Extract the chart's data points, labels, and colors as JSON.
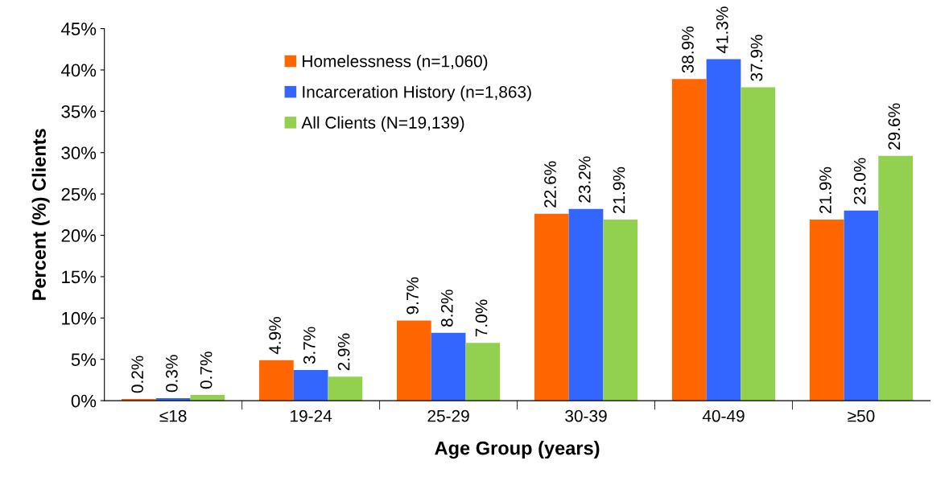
{
  "chart_data": {
    "type": "bar",
    "xlabel": "Age Group (years)",
    "ylabel": "Percent (%) Clients",
    "categories": [
      "≤18",
      "19-24",
      "25-29",
      "30-39",
      "40-49",
      "≥50"
    ],
    "series": [
      {
        "name": "Homelessness (n=1,060)",
        "color": "#ff6600",
        "values": [
          0.2,
          4.9,
          9.7,
          22.6,
          38.9,
          21.9
        ],
        "value_labels": [
          "0.2%",
          "4.9%",
          "9.7%",
          "22.6%",
          "38.9%",
          "21.9%"
        ]
      },
      {
        "name": "Incarceration History (n=1,863)",
        "color": "#3366ff",
        "values": [
          0.3,
          3.7,
          8.2,
          23.2,
          41.3,
          23.0
        ],
        "value_labels": [
          "0.3%",
          "3.7%",
          "8.2%",
          "23.2%",
          "41.3%",
          "23.0%"
        ]
      },
      {
        "name": "All Clients (N=19,139)",
        "color": "#92d050",
        "values": [
          0.7,
          2.9,
          7.0,
          21.9,
          37.9,
          29.6
        ],
        "value_labels": [
          "0.7%",
          "2.9%",
          "7.0%",
          "21.9%",
          "37.9%",
          "29.6%"
        ]
      }
    ],
    "ylim": [
      0,
      45
    ],
    "yticks": [
      {
        "value": 0,
        "label": "0%"
      },
      {
        "value": 5,
        "label": "5%"
      },
      {
        "value": 10,
        "label": "10%"
      },
      {
        "value": 15,
        "label": "15%"
      },
      {
        "value": 20,
        "label": "20%"
      },
      {
        "value": 25,
        "label": "25%"
      },
      {
        "value": 30,
        "label": "30%"
      },
      {
        "value": 35,
        "label": "35%"
      },
      {
        "value": 40,
        "label": "40%"
      },
      {
        "value": 45,
        "label": "45%"
      }
    ],
    "grid": false,
    "legend": "top left"
  }
}
